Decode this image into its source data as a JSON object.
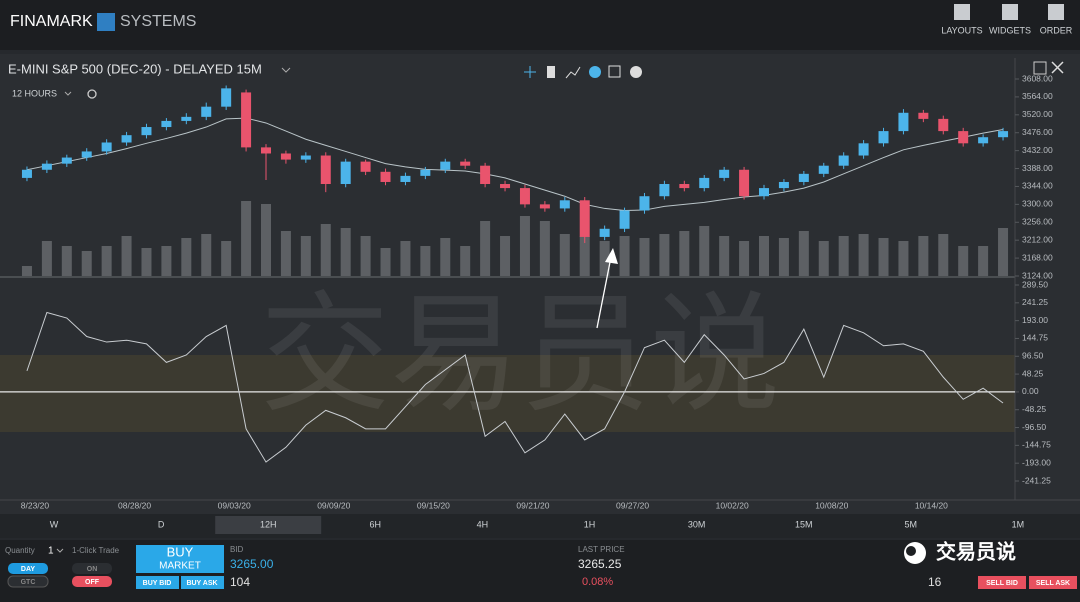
{
  "header": {
    "brand": "FINAMARK",
    "brand2": "SYSTEMS",
    "buttons": [
      "LAYOUTS",
      "WIDGETS",
      "ORDER"
    ]
  },
  "panel": {
    "title": "E-MINI S&P 500 (DEC-20) - DELAYED 15M",
    "interval": "12 HOURS"
  },
  "chart_data": [
    {
      "type": "candlestick",
      "categories": [
        "8/23/20",
        null,
        null,
        null,
        null,
        "08/28/20",
        null,
        null,
        null,
        null,
        "09/03/20",
        null,
        null,
        null,
        null,
        "09/09/20",
        null,
        null,
        null,
        null,
        "09/15/20",
        null,
        null,
        null,
        null,
        "09/21/20",
        null,
        null,
        null,
        null,
        "09/27/20",
        null,
        null,
        null,
        null,
        "10/02/20",
        null,
        null,
        null,
        null,
        "10/08/20",
        null,
        null,
        null,
        null,
        "10/14/20",
        null,
        null,
        null,
        null
      ],
      "open": [
        3365,
        3385,
        3400,
        3415,
        3430,
        3452,
        3470,
        3490,
        3505,
        3515,
        3540,
        3575,
        3440,
        3425,
        3410,
        3420,
        3350,
        3405,
        3380,
        3355,
        3370,
        3385,
        3405,
        3395,
        3350,
        3340,
        3300,
        3290,
        3310,
        3220,
        3240,
        3285,
        3320,
        3350,
        3340,
        3365,
        3385,
        3320,
        3340,
        3355,
        3375,
        3395,
        3420,
        3450,
        3480,
        3525,
        3510,
        3480,
        3450,
        3465
      ],
      "high": [
        3393,
        3408,
        3422,
        3438,
        3460,
        3478,
        3498,
        3512,
        3524,
        3550,
        3592,
        3582,
        3448,
        3432,
        3428,
        3428,
        3412,
        3410,
        3388,
        3378,
        3392,
        3412,
        3412,
        3402,
        3358,
        3348,
        3308,
        3318,
        3318,
        3248,
        3292,
        3328,
        3358,
        3358,
        3372,
        3392,
        3392,
        3348,
        3362,
        3382,
        3402,
        3428,
        3458,
        3488,
        3534,
        3532,
        3518,
        3488,
        3472,
        3488
      ],
      "low": [
        3357,
        3377,
        3392,
        3407,
        3422,
        3444,
        3462,
        3482,
        3497,
        3507,
        3532,
        3430,
        3360,
        3400,
        3402,
        3330,
        3342,
        3372,
        3347,
        3347,
        3362,
        3377,
        3387,
        3342,
        3332,
        3292,
        3282,
        3282,
        3205,
        3212,
        3232,
        3277,
        3312,
        3332,
        3332,
        3357,
        3312,
        3312,
        3332,
        3347,
        3367,
        3387,
        3412,
        3442,
        3472,
        3502,
        3472,
        3442,
        3442,
        3457
      ],
      "close": [
        3385,
        3400,
        3415,
        3430,
        3452,
        3470,
        3490,
        3505,
        3515,
        3540,
        3585,
        3440,
        3425,
        3410,
        3420,
        3350,
        3405,
        3380,
        3355,
        3370,
        3385,
        3405,
        3395,
        3350,
        3340,
        3300,
        3290,
        3310,
        3220,
        3240,
        3285,
        3320,
        3350,
        3340,
        3365,
        3385,
        3320,
        3340,
        3355,
        3375,
        3395,
        3420,
        3450,
        3480,
        3525,
        3510,
        3480,
        3450,
        3465,
        3480
      ],
      "volume": [
        10,
        35,
        30,
        25,
        30,
        40,
        28,
        30,
        38,
        42,
        35,
        75,
        72,
        45,
        40,
        52,
        48,
        40,
        28,
        35,
        30,
        38,
        30,
        55,
        40,
        60,
        55,
        42,
        40,
        35,
        40,
        38,
        42,
        45,
        50,
        40,
        35,
        40,
        38,
        45,
        35,
        40,
        42,
        38,
        35,
        40,
        42,
        30,
        30,
        48
      ],
      "ma": [
        3385,
        3395,
        3405,
        3415,
        3425,
        3437,
        3450,
        3462,
        3475,
        3490,
        3510,
        3512,
        3500,
        3480,
        3460,
        3445,
        3430,
        3415,
        3400,
        3392,
        3386,
        3384,
        3382,
        3375,
        3365,
        3350,
        3335,
        3320,
        3300,
        3290,
        3285,
        3286,
        3295,
        3300,
        3305,
        3312,
        3318,
        3322,
        3330,
        3340,
        3355,
        3375,
        3395,
        3415,
        3434,
        3445,
        3455,
        3465,
        3475,
        3484
      ],
      "up_color": "#4cb4ea",
      "down_color": "#e9546d",
      "volume_color": "#5d6064",
      "ma_color": "#b9c4c8",
      "ylim": [
        3124,
        3608
      ],
      "yticks": [
        {
          "value": 3608,
          "label": "3608.00"
        },
        {
          "value": 3564,
          "label": "3564.00"
        },
        {
          "value": 3520,
          "label": "3520.00"
        },
        {
          "value": 3476,
          "label": "3476.00"
        },
        {
          "value": 3432,
          "label": "3432.00"
        },
        {
          "value": 3388,
          "label": "3388.00"
        },
        {
          "value": 3344,
          "label": "3344.00"
        },
        {
          "value": 3300,
          "label": "3300.00"
        },
        {
          "value": 3256,
          "label": "3256.00"
        },
        {
          "value": 3212,
          "label": "3212.00"
        },
        {
          "value": 3168,
          "label": "3168.00"
        },
        {
          "value": 3124,
          "label": "3124.00"
        }
      ]
    },
    {
      "type": "line",
      "values": [
        57,
        215,
        200,
        150,
        135,
        140,
        130,
        80,
        100,
        150,
        180,
        -100,
        -190,
        -150,
        -90,
        -50,
        -70,
        -100,
        -100,
        -40,
        20,
        60,
        100,
        -120,
        -80,
        -165,
        -130,
        -60,
        -130,
        -100,
        0,
        120,
        140,
        80,
        155,
        100,
        35,
        50,
        80,
        170,
        40,
        180,
        160,
        125,
        130,
        110,
        40,
        -20,
        10,
        -30
      ],
      "color": "#c9cdd1",
      "zero_line": true,
      "ylim": [
        -241.25,
        289.5
      ],
      "yticks": [
        {
          "value": 289.5,
          "label": "289.50"
        },
        {
          "value": 241.25,
          "label": "241.25"
        },
        {
          "value": 193,
          "label": "193.00"
        },
        {
          "value": 144.75,
          "label": "144.75"
        },
        {
          "value": 96.5,
          "label": "96.50"
        },
        {
          "value": 48.25,
          "label": "48.25"
        },
        {
          "value": 0,
          "label": "0.00"
        },
        {
          "value": -48.25,
          "label": "-48.25"
        },
        {
          "value": -96.5,
          "label": "-96.50"
        },
        {
          "value": -144.75,
          "label": "-144.75"
        },
        {
          "value": -193,
          "label": "-193.00"
        },
        {
          "value": -241.25,
          "label": "-241.25"
        }
      ]
    }
  ],
  "timeframes": [
    "W",
    "D",
    "12H",
    "6H",
    "4H",
    "1H",
    "30M",
    "15M",
    "5M",
    "1M"
  ],
  "active_timeframe": "12H",
  "order": {
    "quantity_label": "Quantity",
    "quantity": "1",
    "one_click_label": "1-Click Trade",
    "day": "DAY",
    "gtc": "GTC",
    "on": "ON",
    "off": "OFF",
    "buy": "BUY",
    "market": "MARKET",
    "buy_bid": "BUY BID",
    "buy_ask": "BUY ASK",
    "bid_label": "BID",
    "bid": "3265.00",
    "bid_size": "104",
    "last_label": "LAST PRICE",
    "last": "3265.25",
    "change": "0.08%",
    "ask_size": "16",
    "sell_bid": "SELL BID",
    "sell_ask": "SELL ASK"
  },
  "watermark": "交易员说"
}
